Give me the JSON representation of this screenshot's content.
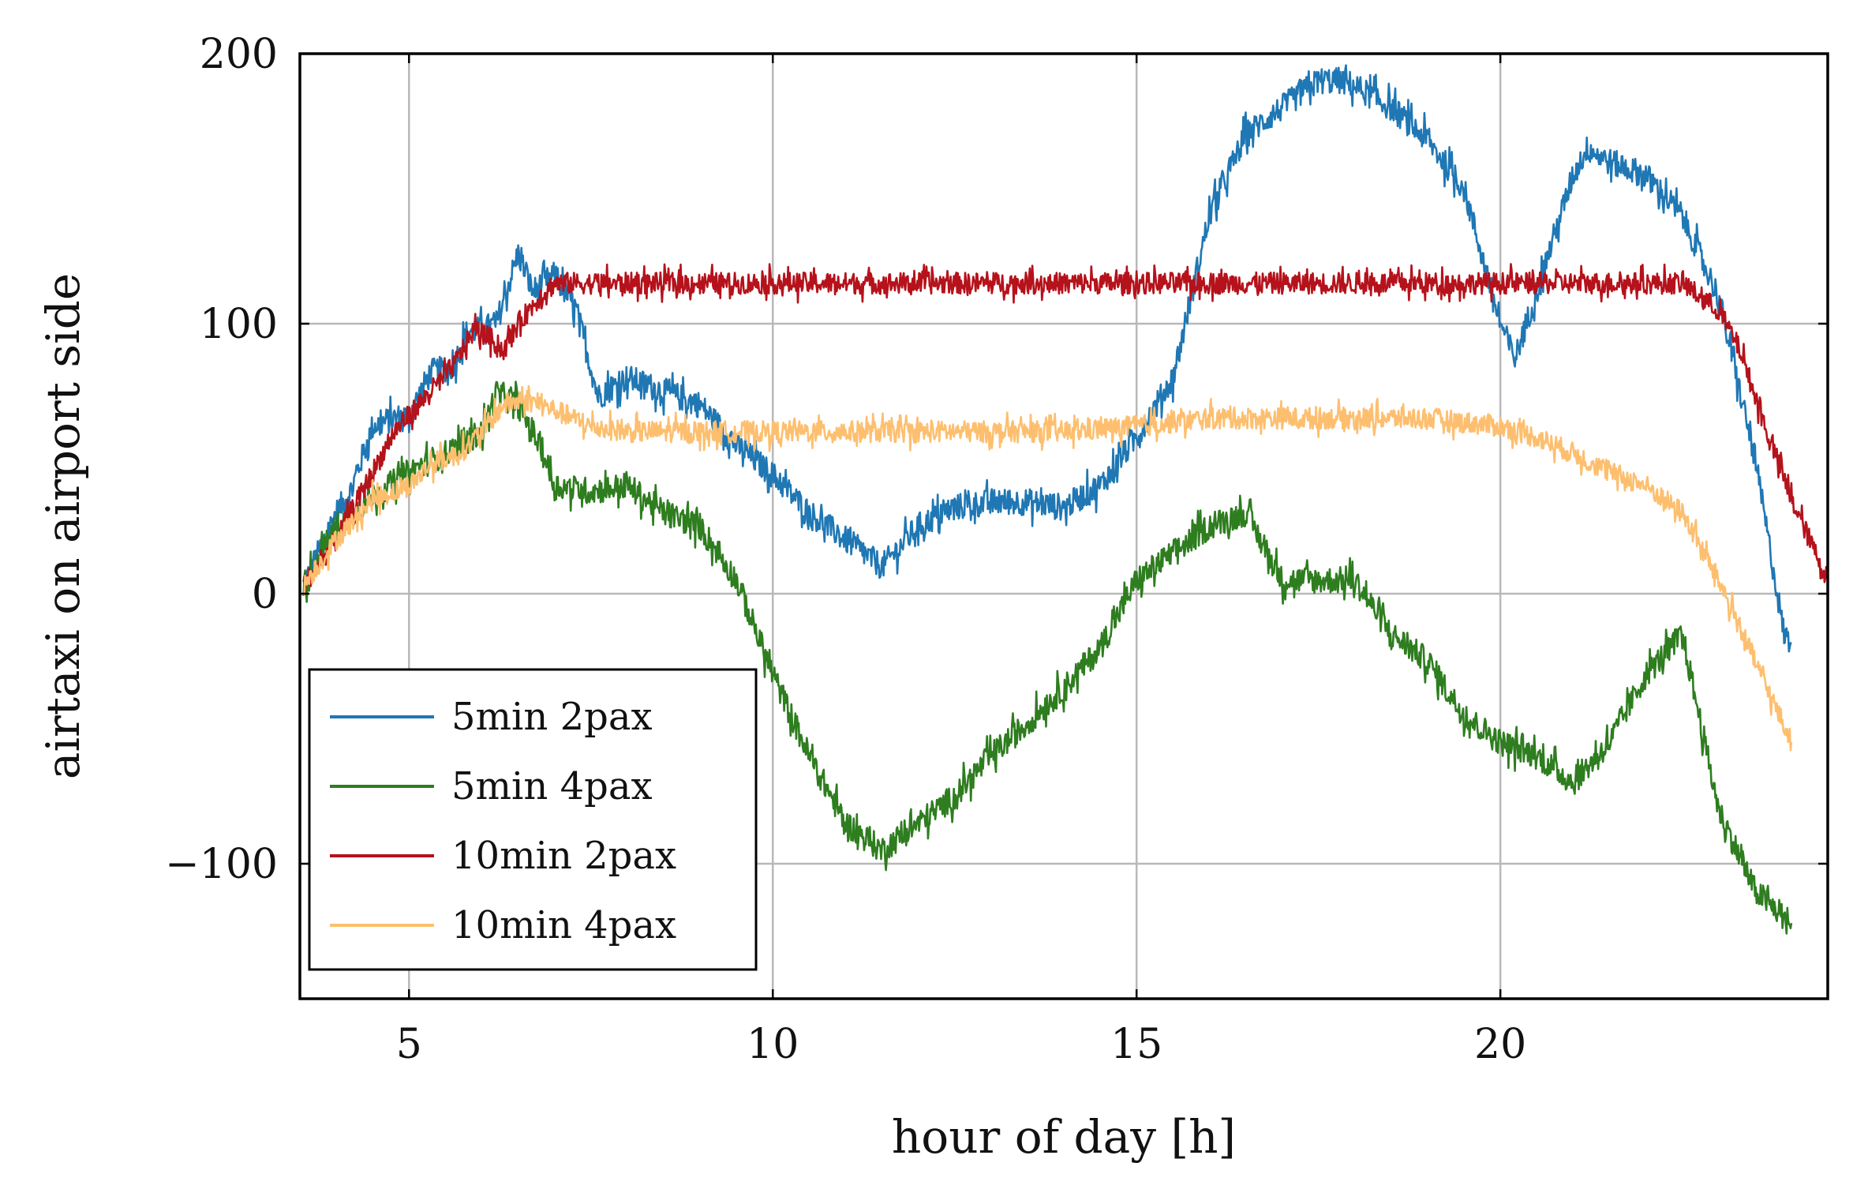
{
  "chart_data": {
    "type": "line",
    "xlabel": "hour of day [h]",
    "ylabel": "airtaxi on airport side",
    "xlim": [
      3.5,
      24.5
    ],
    "ylim": [
      -150,
      200
    ],
    "xticks": [
      5,
      10,
      15,
      20
    ],
    "xtick_labels": [
      "5",
      "10",
      "15",
      "20"
    ],
    "yticks": [
      -100,
      0,
      100,
      200
    ],
    "ytick_labels": [
      "−100",
      "0",
      "100",
      "200"
    ],
    "grid": true,
    "legend_position": "bottom-left",
    "series": [
      {
        "name": "5min 2pax",
        "color": "#1f77b4",
        "noise": 5,
        "x": [
          3.55,
          3.8,
          4.0,
          4.2,
          4.5,
          4.8,
          5.0,
          5.3,
          5.6,
          5.8,
          6.0,
          6.2,
          6.5,
          6.7,
          7.0,
          7.3,
          7.6,
          8.0,
          8.5,
          9.0,
          9.5,
          10.0,
          10.5,
          11.0,
          11.5,
          12.0,
          12.5,
          13.0,
          13.5,
          14.0,
          14.5,
          15.0,
          15.5,
          16.0,
          16.5,
          17.0,
          17.5,
          17.8,
          18.0,
          18.5,
          19.0,
          19.5,
          20.0,
          20.2,
          20.5,
          21.0,
          21.2,
          21.5,
          22.0,
          22.5,
          23.0,
          23.5,
          23.9,
          24.0
        ],
        "y": [
          3,
          18,
          30,
          38,
          62,
          65,
          66,
          82,
          84,
          97,
          98,
          100,
          126,
          112,
          118,
          105,
          73,
          80,
          75,
          70,
          55,
          44,
          30,
          20,
          10,
          25,
          32,
          34,
          34,
          32,
          40,
          58,
          80,
          140,
          170,
          180,
          190,
          190,
          188,
          180,
          168,
          150,
          100,
          87,
          112,
          155,
          165,
          160,
          155,
          140,
          110,
          50,
          -15,
          -18
        ]
      },
      {
        "name": "5min 4pax",
        "color": "#2e7d1f",
        "noise": 5,
        "x": [
          3.55,
          4.0,
          4.5,
          5.0,
          5.5,
          6.0,
          6.2,
          6.5,
          6.8,
          7.0,
          7.5,
          8.0,
          8.5,
          9.0,
          9.5,
          10.0,
          10.5,
          11.0,
          11.5,
          12.0,
          12.5,
          13.0,
          13.5,
          14.0,
          14.5,
          15.0,
          15.5,
          16.0,
          16.5,
          17.0,
          17.5,
          18.0,
          18.5,
          19.0,
          19.5,
          20.0,
          20.5,
          21.0,
          21.5,
          22.0,
          22.5,
          23.0,
          23.5,
          23.9,
          24.0
        ],
        "y": [
          3,
          25,
          36,
          45,
          52,
          60,
          74,
          70,
          55,
          40,
          38,
          40,
          30,
          25,
          5,
          -30,
          -60,
          -85,
          -95,
          -85,
          -75,
          -60,
          -48,
          -35,
          -20,
          5,
          15,
          25,
          30,
          5,
          5,
          5,
          -15,
          -25,
          -45,
          -55,
          -60,
          -70,
          -55,
          -30,
          -15,
          -80,
          -110,
          -120,
          -122
        ]
      },
      {
        "name": "10min 2pax",
        "color": "#b5121b",
        "noise": 4,
        "x": [
          3.55,
          4.0,
          4.5,
          4.8,
          5.0,
          5.3,
          5.6,
          5.9,
          6.1,
          6.3,
          6.5,
          6.8,
          7.0,
          7.5,
          9.0,
          11.0,
          13.0,
          15.0,
          17.0,
          19.0,
          21.0,
          22.5,
          23.0,
          23.3,
          23.6,
          24.0,
          24.5
        ],
        "y": [
          3,
          20,
          45,
          60,
          66,
          75,
          84,
          98,
          95,
          90,
          100,
          110,
          115,
          115,
          115,
          115,
          115,
          115,
          115,
          115,
          115,
          115,
          105,
          90,
          65,
          35,
          5
        ]
      },
      {
        "name": "10min 4pax",
        "color": "#fdbf6f",
        "noise": 4,
        "x": [
          3.55,
          4.0,
          4.5,
          5.0,
          5.3,
          5.7,
          6.0,
          6.3,
          6.6,
          7.0,
          7.5,
          8.0,
          9.0,
          10.0,
          11.0,
          12.0,
          13.0,
          14.0,
          15.0,
          16.0,
          17.0,
          18.0,
          19.0,
          20.0,
          20.5,
          21.0,
          21.5,
          22.0,
          22.5,
          23.0,
          23.5,
          24.0
        ],
        "y": [
          3,
          20,
          35,
          40,
          48,
          52,
          60,
          70,
          72,
          68,
          62,
          60,
          60,
          60,
          60,
          60,
          60,
          60,
          62,
          65,
          65,
          65,
          65,
          62,
          58,
          52,
          45,
          40,
          30,
          5,
          -25,
          -55
        ]
      }
    ]
  }
}
